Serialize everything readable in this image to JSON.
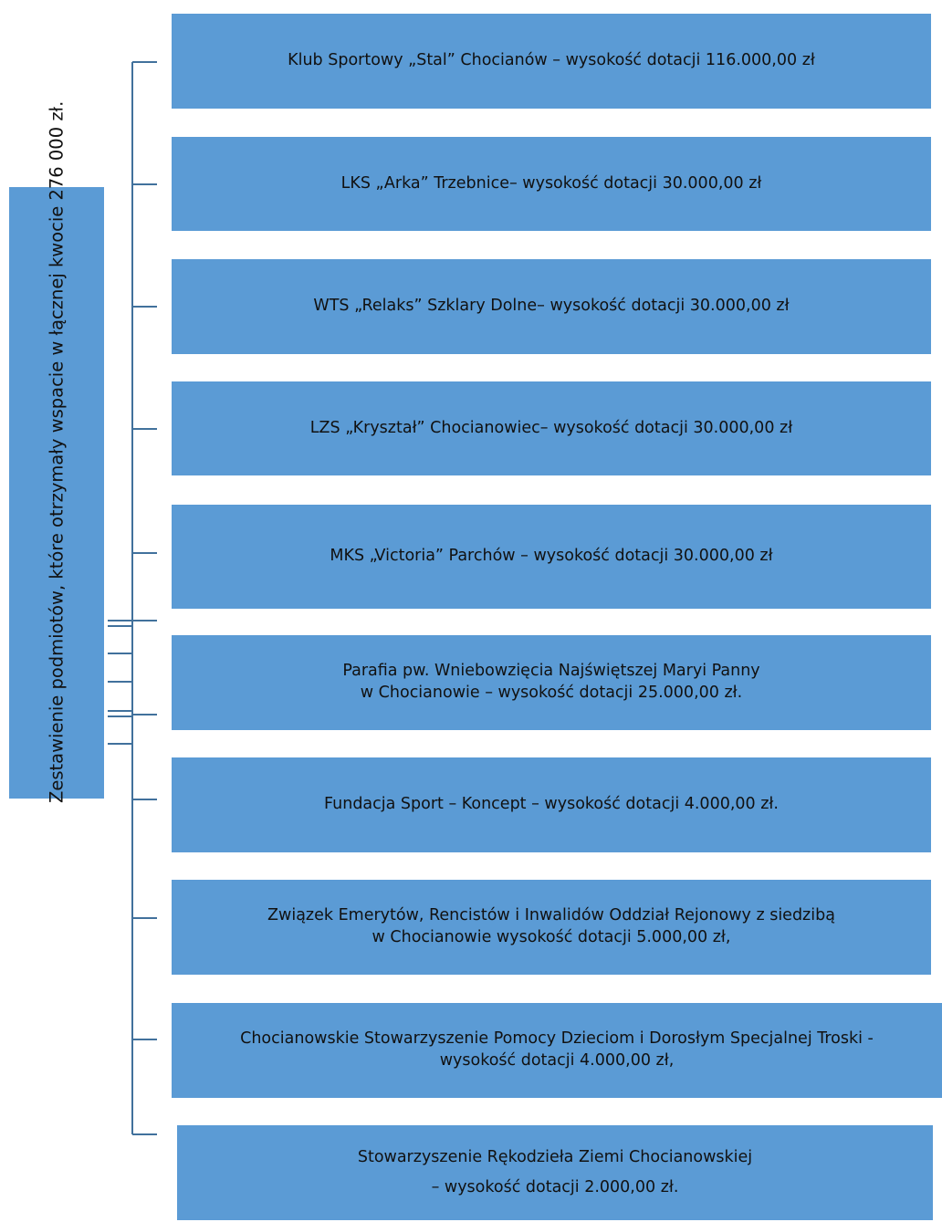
{
  "root": {
    "label": "Zestawienie podmiotów, które otrzymały wspacie w łącznej kwocie  276 000 zł."
  },
  "entities": [
    {
      "text": "Klub Sportowy „Stal” Chocianów – wysokość dotacji 116.000,00 zł"
    },
    {
      "text": "LKS „Arka” Trzebnice– wysokość dotacji 30.000,00 zł"
    },
    {
      "text": "WTS „Relaks” Szklary Dolne– wysokość dotacji 30.000,00 zł"
    },
    {
      "text": "LZS „Kryształ” Chocianowiec– wysokość dotacji 30.000,00 zł"
    },
    {
      "text": "MKS „Victoria” Parchów – wysokość dotacji 30.000,00 zł"
    },
    {
      "text": "Parafia pw. Wniebowzięcia Najświętszej Maryi Panny\nw Chocianowie – wysokość dotacji 25.000,00 zł."
    },
    {
      "text": "Fundacja Sport – Koncept –  wysokość dotacji 4.000,00 zł."
    },
    {
      "text": "Związek Emerytów, Rencistów i Inwalidów Oddział Rejonowy z siedzibą\nw Chocianowie wysokość dotacji 5.000,00 zł,"
    },
    {
      "text": "Chocianowskie Stowarzyszenie Pomocy Dzieciom i Dorosłym Specjalnej Troski -\nwysokość dotacji 4.000,00 zł,"
    },
    {
      "text": "Stowarzyszenie Rękodzieła Ziemi Chocianowskiej\n– wysokość dotacji 2.000,00 zł."
    }
  ],
  "colors": {
    "box_fill": "#5b9bd5",
    "connector": "#41719c"
  }
}
